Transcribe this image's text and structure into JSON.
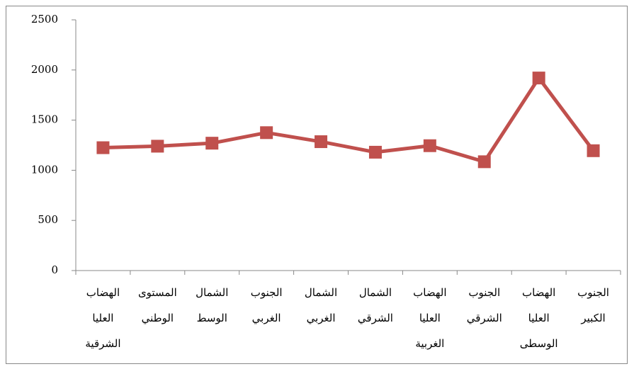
{
  "chart_data": {
    "type": "line",
    "categories": [
      "الهضاب العليا الشرقية",
      "المستوى الوطني",
      "الشمال الوسط",
      "الجنوب الغربي",
      "الشمال الغربي",
      "الشمال الشرقي",
      "الهضاب العليا الغربية",
      "الجنوب الشرقي",
      "الهضاب العليا الوسطى",
      "الجنوب الكبير"
    ],
    "values": [
      1225,
      1240,
      1270,
      1375,
      1285,
      1180,
      1245,
      1085,
      1920,
      1195
    ],
    "color": "#c0504d",
    "ylim": [
      0,
      2500
    ],
    "yticks": [
      0,
      500,
      1000,
      1500,
      2000,
      2500
    ],
    "grid": false
  }
}
